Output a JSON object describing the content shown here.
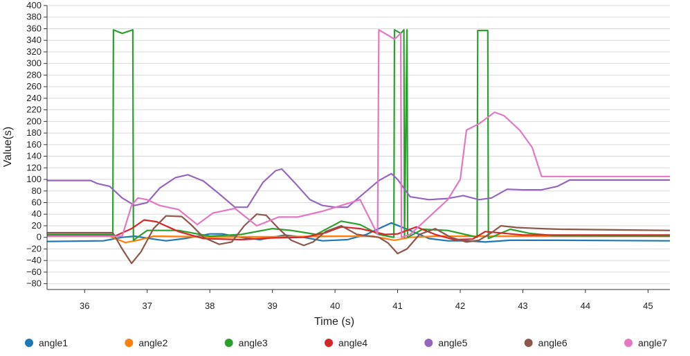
{
  "chart_data": {
    "type": "line",
    "title": "",
    "xlabel": "Time (s)",
    "ylabel": "Value(s)",
    "xlim": [
      35.4,
      45.35
    ],
    "ylim": [
      -90,
      400
    ],
    "xticks": [
      36,
      37,
      38,
      39,
      40,
      41,
      42,
      43,
      44,
      45
    ],
    "yticks": [
      -80,
      -60,
      -40,
      -20,
      0,
      20,
      40,
      60,
      80,
      100,
      120,
      140,
      160,
      180,
      200,
      220,
      240,
      260,
      280,
      300,
      320,
      340,
      360,
      380,
      400
    ],
    "grid": true,
    "legend_position": "bottom",
    "series": [
      {
        "name": "angle1",
        "color": "#1f77b4",
        "points": [
          [
            35.4,
            -7
          ],
          [
            36.3,
            -6
          ],
          [
            36.6,
            0
          ],
          [
            36.8,
            2
          ],
          [
            37.1,
            -3
          ],
          [
            37.3,
            -6
          ],
          [
            37.6,
            -2
          ],
          [
            38.0,
            6
          ],
          [
            38.2,
            6
          ],
          [
            38.5,
            0
          ],
          [
            38.8,
            -4
          ],
          [
            39.2,
            4
          ],
          [
            39.5,
            0
          ],
          [
            39.8,
            -6
          ],
          [
            40.2,
            -4
          ],
          [
            40.5,
            5
          ],
          [
            40.9,
            25
          ],
          [
            41.2,
            12
          ],
          [
            41.5,
            -2
          ],
          [
            41.8,
            -6
          ],
          [
            42.1,
            -6
          ],
          [
            42.4,
            -8
          ],
          [
            42.8,
            -5
          ],
          [
            43.5,
            -5
          ],
          [
            45.35,
            -6
          ]
        ]
      },
      {
        "name": "angle2",
        "color": "#ff7f0e",
        "points": [
          [
            35.4,
            2
          ],
          [
            36.4,
            2
          ],
          [
            36.65,
            -9
          ],
          [
            36.85,
            -5
          ],
          [
            37.1,
            2
          ],
          [
            38.0,
            1
          ],
          [
            39.0,
            1
          ],
          [
            40.0,
            2
          ],
          [
            40.6,
            2
          ],
          [
            40.95,
            -5
          ],
          [
            41.2,
            0
          ],
          [
            41.6,
            2
          ],
          [
            42.5,
            2
          ],
          [
            43.0,
            2
          ],
          [
            45.35,
            2
          ]
        ]
      },
      {
        "name": "angle3",
        "color": "#2ca02c",
        "points": [
          [
            35.4,
            5
          ],
          [
            36.45,
            5
          ],
          [
            36.46,
            358
          ],
          [
            36.6,
            352
          ],
          [
            36.77,
            358
          ],
          [
            36.78,
            -5
          ],
          [
            37.0,
            12
          ],
          [
            37.5,
            12
          ],
          [
            38.0,
            2
          ],
          [
            38.5,
            5
          ],
          [
            39.0,
            15
          ],
          [
            39.3,
            12
          ],
          [
            39.7,
            5
          ],
          [
            40.1,
            28
          ],
          [
            40.4,
            22
          ],
          [
            40.7,
            5
          ],
          [
            40.94,
            0
          ],
          [
            40.95,
            358
          ],
          [
            41.05,
            352
          ],
          [
            41.1,
            358
          ],
          [
            41.11,
            0
          ],
          [
            41.15,
            358
          ],
          [
            41.16,
            0
          ],
          [
            41.4,
            14
          ],
          [
            41.8,
            12
          ],
          [
            42.2,
            2
          ],
          [
            42.27,
            0
          ],
          [
            42.28,
            357
          ],
          [
            42.44,
            357
          ],
          [
            42.45,
            -2
          ],
          [
            42.8,
            14
          ],
          [
            43.1,
            7
          ],
          [
            43.5,
            3
          ],
          [
            45.35,
            2
          ]
        ]
      },
      {
        "name": "angle4",
        "color": "#d62728",
        "points": [
          [
            35.4,
            3
          ],
          [
            36.5,
            3
          ],
          [
            36.75,
            15
          ],
          [
            36.95,
            30
          ],
          [
            37.15,
            27
          ],
          [
            37.5,
            10
          ],
          [
            37.9,
            -2
          ],
          [
            38.5,
            -4
          ],
          [
            39.0,
            -1
          ],
          [
            39.5,
            0
          ],
          [
            39.85,
            8
          ],
          [
            40.1,
            18
          ],
          [
            40.4,
            15
          ],
          [
            40.8,
            5
          ],
          [
            41.0,
            6
          ],
          [
            41.3,
            18
          ],
          [
            41.6,
            5
          ],
          [
            41.9,
            -4
          ],
          [
            42.2,
            -3
          ],
          [
            42.4,
            10
          ],
          [
            42.7,
            7
          ],
          [
            43.0,
            4
          ],
          [
            45.35,
            4
          ]
        ]
      },
      {
        "name": "angle5",
        "color": "#9467bd",
        "points": [
          [
            35.4,
            98
          ],
          [
            36.1,
            98
          ],
          [
            36.2,
            93
          ],
          [
            36.4,
            88
          ],
          [
            36.6,
            68
          ],
          [
            36.8,
            55
          ],
          [
            37.0,
            60
          ],
          [
            37.2,
            85
          ],
          [
            37.45,
            103
          ],
          [
            37.65,
            108
          ],
          [
            37.9,
            97
          ],
          [
            38.15,
            75
          ],
          [
            38.4,
            52
          ],
          [
            38.6,
            52
          ],
          [
            38.85,
            95
          ],
          [
            39.05,
            115
          ],
          [
            39.15,
            118
          ],
          [
            39.35,
            95
          ],
          [
            39.6,
            65
          ],
          [
            39.8,
            55
          ],
          [
            40.0,
            52
          ],
          [
            40.2,
            52
          ],
          [
            40.45,
            75
          ],
          [
            40.7,
            98
          ],
          [
            40.9,
            110
          ],
          [
            41.0,
            100
          ],
          [
            41.2,
            70
          ],
          [
            41.5,
            65
          ],
          [
            41.8,
            67
          ],
          [
            42.05,
            72
          ],
          [
            42.3,
            65
          ],
          [
            42.5,
            68
          ],
          [
            42.75,
            83
          ],
          [
            43.0,
            82
          ],
          [
            43.3,
            82
          ],
          [
            43.55,
            88
          ],
          [
            43.75,
            99
          ],
          [
            45.35,
            99
          ]
        ]
      },
      {
        "name": "angle6",
        "color": "#8c564b",
        "points": [
          [
            35.4,
            8
          ],
          [
            36.45,
            8
          ],
          [
            36.6,
            -20
          ],
          [
            36.75,
            -45
          ],
          [
            36.9,
            -25
          ],
          [
            37.1,
            15
          ],
          [
            37.3,
            37
          ],
          [
            37.55,
            36
          ],
          [
            37.7,
            22
          ],
          [
            37.9,
            0
          ],
          [
            38.15,
            -12
          ],
          [
            38.35,
            -8
          ],
          [
            38.55,
            20
          ],
          [
            38.75,
            40
          ],
          [
            38.9,
            38
          ],
          [
            39.1,
            15
          ],
          [
            39.3,
            -5
          ],
          [
            39.5,
            -14
          ],
          [
            39.65,
            -8
          ],
          [
            39.85,
            10
          ],
          [
            40.1,
            20
          ],
          [
            40.35,
            5
          ],
          [
            40.7,
            0
          ],
          [
            40.85,
            -10
          ],
          [
            41.0,
            -28
          ],
          [
            41.15,
            -20
          ],
          [
            41.35,
            5
          ],
          [
            41.6,
            15
          ],
          [
            41.85,
            0
          ],
          [
            42.1,
            -8
          ],
          [
            42.3,
            -5
          ],
          [
            42.5,
            8
          ],
          [
            42.65,
            20
          ],
          [
            42.9,
            17
          ],
          [
            43.3,
            15
          ],
          [
            43.6,
            14
          ],
          [
            45.35,
            12
          ]
        ]
      },
      {
        "name": "angle7",
        "color": "#e377c2",
        "points": [
          [
            35.4,
            2
          ],
          [
            36.6,
            2
          ],
          [
            36.75,
            55
          ],
          [
            36.85,
            68
          ],
          [
            37.0,
            65
          ],
          [
            37.2,
            55
          ],
          [
            37.5,
            48
          ],
          [
            37.8,
            22
          ],
          [
            38.05,
            42
          ],
          [
            38.4,
            50
          ],
          [
            38.75,
            20
          ],
          [
            39.1,
            35
          ],
          [
            39.4,
            35
          ],
          [
            39.8,
            45
          ],
          [
            40.1,
            55
          ],
          [
            40.4,
            65
          ],
          [
            40.68,
            5
          ],
          [
            40.7,
            358
          ],
          [
            40.95,
            342
          ],
          [
            41.05,
            352
          ],
          [
            41.06,
            0
          ],
          [
            41.2,
            5
          ],
          [
            41.5,
            35
          ],
          [
            41.8,
            65
          ],
          [
            42.0,
            100
          ],
          [
            42.1,
            185
          ],
          [
            42.3,
            196
          ],
          [
            42.55,
            216
          ],
          [
            42.7,
            210
          ],
          [
            42.95,
            185
          ],
          [
            43.15,
            155
          ],
          [
            43.3,
            105
          ],
          [
            45.35,
            105
          ]
        ]
      }
    ]
  }
}
